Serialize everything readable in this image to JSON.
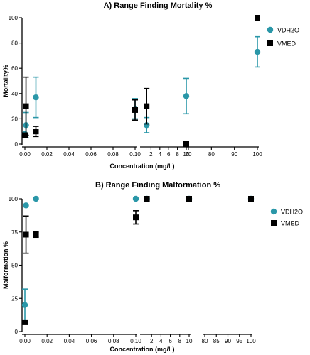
{
  "colors": {
    "VDH2O": "#2a97a8",
    "VMED": "#000000",
    "axis": "#000000"
  },
  "chart_data": [
    {
      "type": "scatter",
      "title": "A) Range Finding  Mortality %",
      "xlabel": "Concentration (mg/L)",
      "ylabel": "Mortality%",
      "ylim": [
        0,
        100
      ],
      "yticks": [
        0,
        20,
        40,
        60,
        80,
        100
      ],
      "legend_position": "right",
      "segments": [
        {
          "xlim": [
            0,
            0.1
          ],
          "ticks": [
            0,
            0.02,
            0.04,
            0.06,
            0.08,
            0.1
          ],
          "tick_labels": [
            "0.00",
            "0.02",
            "0.04",
            "0.06",
            "0.08",
            "0.10"
          ]
        },
        {
          "xlim": [
            0,
            10
          ],
          "ticks": [
            2,
            4,
            6,
            8,
            10
          ],
          "tick_labels": [
            "2",
            "4",
            "6",
            "8",
            "10"
          ]
        },
        {
          "xlim": [
            70,
            100
          ],
          "ticks": [
            70,
            80,
            90,
            100
          ],
          "tick_labels": [
            "70",
            "80",
            "90",
            "100"
          ]
        }
      ],
      "series": [
        {
          "name": "VDH2O",
          "marker": "circle",
          "points": [
            {
              "x": 0,
              "y": 8,
              "err": 0
            },
            {
              "x": 0.001,
              "y": 15,
              "err": 10
            },
            {
              "x": 0.01,
              "y": 37,
              "err": 16
            },
            {
              "x": 0.1,
              "y": 28,
              "err": 8
            },
            {
              "x": 1,
              "y": 15,
              "err": 6
            },
            {
              "x": 10,
              "y": 38,
              "err": 14
            },
            {
              "x": 100,
              "y": 73,
              "err": 12
            }
          ]
        },
        {
          "name": "VMED",
          "marker": "square",
          "points": [
            {
              "x": 0,
              "y": 7,
              "err": 0
            },
            {
              "x": 0.001,
              "y": 30,
              "err": 23
            },
            {
              "x": 0.01,
              "y": 10,
              "err": 4
            },
            {
              "x": 0.1,
              "y": 27,
              "err": 8
            },
            {
              "x": 1,
              "y": 30,
              "err": 14
            },
            {
              "x": 10,
              "y": 0,
              "err": 0
            },
            {
              "x": 100,
              "y": 100,
              "err": 0
            }
          ]
        }
      ]
    },
    {
      "type": "scatter",
      "title": "B) Range Finding Malformation %",
      "xlabel": "Concentration (mg/L)",
      "ylabel": "Malformation %",
      "ylim": [
        0,
        100
      ],
      "yticks": [
        0,
        25,
        50,
        75,
        100
      ],
      "legend_position": "right",
      "segments": [
        {
          "xlim": [
            0,
            0.1
          ],
          "ticks": [
            0,
            0.02,
            0.04,
            0.06,
            0.08,
            0.1
          ],
          "tick_labels": [
            "0.00",
            "0.02",
            "0.04",
            "0.06",
            "0.08",
            "0.10"
          ]
        },
        {
          "xlim": [
            0,
            10
          ],
          "ticks": [
            2,
            4,
            6,
            8,
            10
          ],
          "tick_labels": [
            "2",
            "4",
            "6",
            "8",
            "10"
          ]
        },
        {
          "xlim": [
            80,
            100
          ],
          "ticks": [
            80,
            85,
            90,
            95,
            100
          ],
          "tick_labels": [
            "80",
            "85",
            "90",
            "95",
            "100"
          ]
        }
      ],
      "series": [
        {
          "name": "VDH2O",
          "marker": "circle",
          "points": [
            {
              "x": 0,
              "y": 20,
              "err": 12
            },
            {
              "x": 0.001,
              "y": 95,
              "err": 0
            },
            {
              "x": 0.01,
              "y": 100,
              "err": 0
            },
            {
              "x": 0.1,
              "y": 100,
              "err": 0
            },
            {
              "x": 1,
              "y": 100,
              "err": 0
            },
            {
              "x": 10,
              "y": 100,
              "err": 0
            },
            {
              "x": 100,
              "y": 100,
              "err": 0
            }
          ]
        },
        {
          "name": "VMED",
          "marker": "square",
          "points": [
            {
              "x": 0,
              "y": 7,
              "err": 0
            },
            {
              "x": 0.001,
              "y": 73,
              "err": 14
            },
            {
              "x": 0.01,
              "y": 73,
              "err": 2
            },
            {
              "x": 0.1,
              "y": 86,
              "err": 5
            },
            {
              "x": 1,
              "y": 100,
              "err": 0
            },
            {
              "x": 10,
              "y": 100,
              "err": 0
            },
            {
              "x": 100,
              "y": 100,
              "err": 0
            }
          ]
        }
      ]
    }
  ]
}
